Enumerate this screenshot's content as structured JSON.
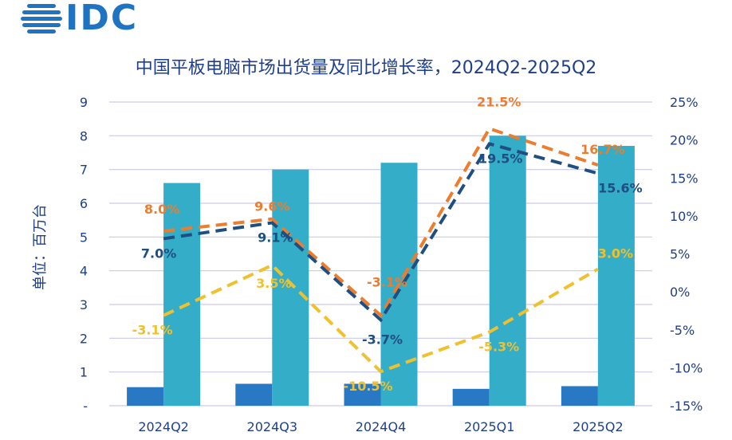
{
  "brand": {
    "logo_text": "IDC"
  },
  "chart_data": {
    "type": "bar",
    "title": "中国平板电脑市场出货量及同比增长率，2024Q2-2025Q2",
    "ylabel": "单位：百万台",
    "categories": [
      "2024Q2",
      "2024Q3",
      "2024Q4",
      "2025Q1",
      "2025Q2"
    ],
    "left_axis": {
      "ticks": [
        "-",
        "1",
        "2",
        "3",
        "4",
        "5",
        "6",
        "7",
        "8",
        "9"
      ],
      "ylim": [
        0,
        9
      ]
    },
    "right_axis": {
      "ticks": [
        "-15%",
        "-10%",
        "-5%",
        "0%",
        "5%",
        "10%",
        "15%",
        "20%",
        "25%"
      ],
      "ylim": [
        -15,
        25
      ]
    },
    "bar_series": [
      {
        "color": "#2878c3",
        "values": [
          0.55,
          0.65,
          0.65,
          0.5,
          0.58
        ]
      },
      {
        "color": "#34adc8",
        "values": [
          6.6,
          7.0,
          7.2,
          8.0,
          7.7
        ]
      }
    ],
    "line_series": [
      {
        "color": "#ec7d2e",
        "values": [
          8.0,
          9.6,
          -3.1,
          21.5,
          16.7
        ],
        "labels": [
          "8.0%",
          "9.6%",
          "-3.1%",
          "21.5%",
          "16.7%"
        ]
      },
      {
        "color": "#1f4e80",
        "values": [
          7.0,
          9.1,
          -3.7,
          19.5,
          15.6
        ],
        "labels": [
          "7.0%",
          "9.1%",
          "-3.7%",
          "19.5%",
          "15.6%"
        ]
      },
      {
        "color": "#efc12c",
        "values": [
          -3.1,
          3.5,
          -10.5,
          -5.3,
          3.0
        ],
        "labels": [
          "-3.1%",
          "3.5%",
          "-10.5%",
          "-5.3%",
          "3.0%"
        ]
      }
    ],
    "grid": true
  }
}
